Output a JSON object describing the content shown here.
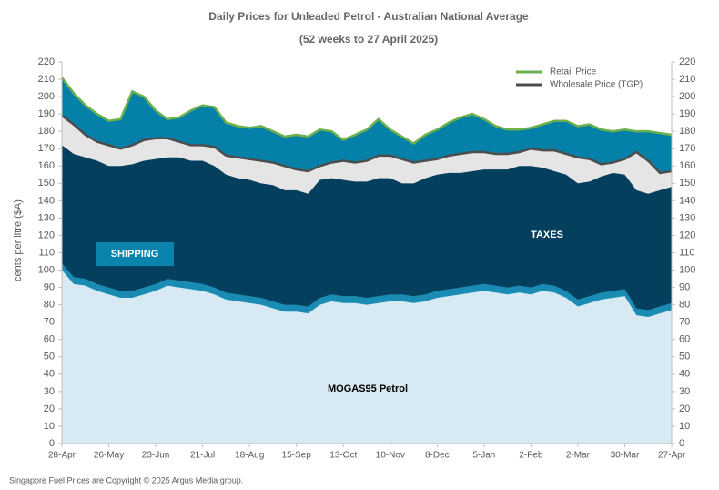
{
  "chart_data": {
    "type": "stacked_area",
    "title": "Daily  Prices for Unleaded  Petrol  - Australian  National  Average",
    "subtitle": "(52 weeks to 27 April 2025)",
    "y_label": "cents per litre ($A)",
    "footer": "Singapore  Fuel Prices are  Copyright © 2025 Argus Media  group.",
    "categories": [
      "28-Apr",
      null,
      null,
      null,
      "26-May",
      null,
      null,
      null,
      "23-Jun",
      null,
      null,
      null,
      "21-Jul",
      null,
      null,
      null,
      "18-Aug",
      null,
      null,
      null,
      "15-Sep",
      null,
      null,
      null,
      "13-Oct",
      null,
      null,
      null,
      "10-Nov",
      null,
      null,
      null,
      "8-Dec",
      null,
      null,
      null,
      "5-Jan",
      null,
      null,
      null,
      "2-Feb",
      null,
      null,
      null,
      "2-Mar",
      null,
      null,
      null,
      "30-Mar",
      null,
      null,
      null,
      "27-Apr"
    ],
    "series": [
      {
        "name": "MOGAS95 Petrol",
        "color": "#d7e9f3",
        "stack": true,
        "values": [
          100,
          92,
          91,
          88,
          86,
          84,
          84,
          86,
          88,
          91,
          90,
          89,
          88,
          86,
          83,
          82,
          81,
          80,
          78,
          76,
          76,
          75,
          80,
          82,
          81,
          81,
          80,
          81,
          82,
          82,
          81,
          82,
          84,
          85,
          86,
          87,
          88,
          87,
          86,
          87,
          86,
          88,
          87,
          84,
          79,
          81,
          83,
          84,
          85,
          74,
          73,
          75,
          77
        ]
      },
      {
        "name": "SHIPPING",
        "color": "#1a8cb3",
        "stack": true,
        "values": [
          4,
          4,
          4,
          4,
          4,
          4,
          4,
          4,
          4,
          4,
          4,
          4,
          4,
          4,
          4,
          4,
          4,
          4,
          4,
          4,
          4,
          4,
          4,
          4,
          4,
          4,
          4,
          4,
          4,
          4,
          4,
          4,
          4,
          4,
          4,
          4,
          4,
          4,
          4,
          4,
          4,
          4,
          4,
          4,
          4,
          4,
          4,
          4,
          4,
          4,
          4,
          4,
          4
        ]
      },
      {
        "name": "TAXES",
        "color": "#053f5e",
        "stack": true,
        "values": [
          68,
          71,
          70,
          71,
          70,
          72,
          73,
          73,
          72,
          70,
          71,
          70,
          71,
          70,
          68,
          67,
          67,
          66,
          67,
          66,
          66,
          65,
          68,
          67,
          67,
          66,
          67,
          68,
          67,
          64,
          65,
          67,
          67,
          67,
          66,
          66,
          66,
          67,
          68,
          69,
          70,
          67,
          66,
          67,
          67,
          66,
          67,
          68,
          66,
          68,
          67,
          67,
          67
        ]
      },
      {
        "name": "Wholesale Price (TGP)",
        "color": "#4d4d4d",
        "fill": "#e5e5e5",
        "values": [
          189,
          184,
          178,
          174,
          172,
          170,
          172,
          175,
          176,
          176,
          174,
          172,
          172,
          171,
          166,
          165,
          164,
          163,
          162,
          160,
          158,
          157,
          160,
          162,
          163,
          162,
          163,
          166,
          166,
          164,
          162,
          163,
          164,
          166,
          167,
          168,
          168,
          167,
          167,
          168,
          170,
          169,
          169,
          167,
          165,
          164,
          161,
          162,
          164,
          168,
          163,
          156,
          157
        ]
      },
      {
        "name": "Retail Price",
        "color": "#6ab04c",
        "fill": "#0581a9",
        "values": [
          211,
          202,
          195,
          190,
          186,
          187,
          203,
          200,
          192,
          187,
          188,
          192,
          195,
          194,
          185,
          183,
          182,
          183,
          180,
          177,
          178,
          177,
          181,
          180,
          175,
          178,
          181,
          187,
          181,
          177,
          173,
          178,
          181,
          185,
          188,
          190,
          187,
          183,
          181,
          181,
          182,
          184,
          186,
          186,
          183,
          184,
          181,
          180,
          181,
          180,
          180,
          179,
          178
        ]
      }
    ],
    "ylim": [
      0,
      220
    ],
    "yticks": [
      0,
      10,
      20,
      30,
      40,
      50,
      60,
      70,
      80,
      90,
      100,
      110,
      120,
      130,
      140,
      150,
      160,
      170,
      180,
      190,
      200,
      210,
      220
    ],
    "legend": "top-right"
  }
}
